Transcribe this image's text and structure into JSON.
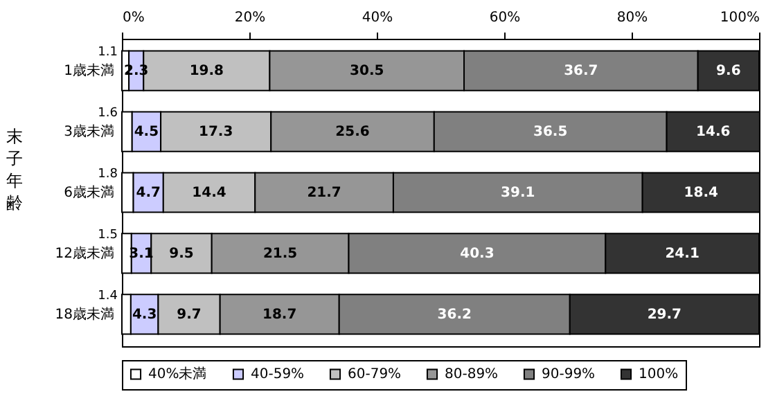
{
  "chart_data": {
    "type": "bar",
    "orientation": "horizontal",
    "stacked": true,
    "ylabel": "末子年齢",
    "categories": [
      "1歳未満",
      "3歳未満",
      "6歳未満",
      "12歳未満",
      "18歳未満"
    ],
    "series": [
      {
        "name": "40%未満",
        "color": "#ffffff",
        "values": [
          1.1,
          1.6,
          1.8,
          1.5,
          1.4
        ]
      },
      {
        "name": "40-59%",
        "color": "#ccccff",
        "values": [
          2.3,
          4.5,
          4.7,
          3.1,
          4.3
        ]
      },
      {
        "name": "60-79%",
        "color": "#c0c0c0",
        "values": [
          19.8,
          17.3,
          14.4,
          9.5,
          9.7
        ]
      },
      {
        "name": "80-89%",
        "color": "#969696",
        "values": [
          30.5,
          25.6,
          21.7,
          21.5,
          18.7
        ]
      },
      {
        "name": "90-99%",
        "color": "#808080",
        "values": [
          36.7,
          36.5,
          39.1,
          40.3,
          36.2
        ]
      },
      {
        "name": "100%",
        "color": "#333333",
        "values": [
          9.6,
          14.6,
          18.4,
          24.1,
          29.7
        ]
      }
    ],
    "xlim": [
      0,
      100
    ],
    "xticks": [
      {
        "value": 0,
        "label": "0%"
      },
      {
        "value": 20,
        "label": "20%"
      },
      {
        "value": 40,
        "label": "40%"
      },
      {
        "value": 60,
        "label": "60%"
      },
      {
        "value": 80,
        "label": "80%"
      },
      {
        "value": 100,
        "label": "100%"
      }
    ],
    "data_labels": true,
    "legend": "bottom",
    "grid": false
  }
}
